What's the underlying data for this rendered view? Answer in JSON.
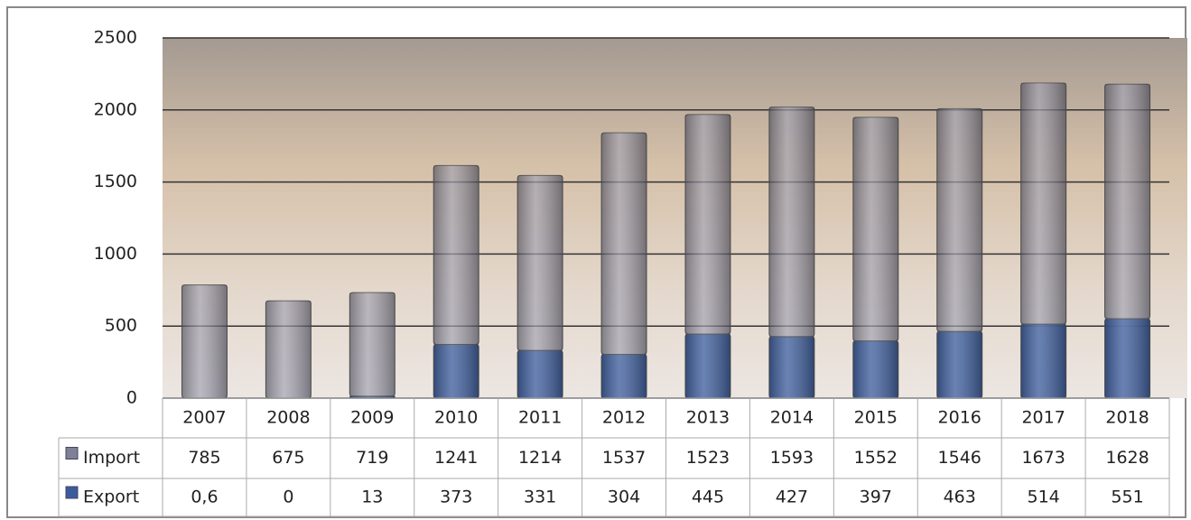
{
  "chart_data": {
    "type": "bar",
    "stacked": true,
    "categories": [
      "2007",
      "2008",
      "2009",
      "2010",
      "2011",
      "2012",
      "2013",
      "2014",
      "2015",
      "2016",
      "2017",
      "2018"
    ],
    "series": [
      {
        "name": "Import",
        "color": "#7f7f95",
        "values": [
          785,
          675,
          719,
          1241,
          1214,
          1537,
          1523,
          1593,
          1552,
          1546,
          1673,
          1628
        ]
      },
      {
        "name": "Export",
        "color": "#3b5c9c",
        "values": [
          0.6,
          0,
          13,
          373,
          331,
          304,
          445,
          427,
          397,
          463,
          514,
          551
        ],
        "value_labels": [
          "0,6",
          "0",
          "13",
          "373",
          "331",
          "304",
          "445",
          "427",
          "397",
          "463",
          "514",
          "551"
        ]
      }
    ],
    "ylim": [
      0,
      2500
    ],
    "yticks": [
      0,
      500,
      1000,
      1500,
      2000,
      2500
    ],
    "grid": true
  }
}
